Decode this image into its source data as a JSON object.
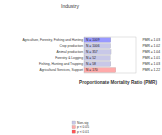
{
  "chart_data": {
    "type": "bar",
    "orientation": "horizontal",
    "title": "Industry",
    "x_label": "Proportionate Mortality Ratio (PMR)",
    "categories": [
      "Agriculture, Forestry, Fishing and Hunting",
      "Crop production",
      "Animal production",
      "Forestry & Logging",
      "Fishing, Hunting and Trapping",
      "Agricultural Services, Support"
    ],
    "values": [
      1.03,
      1.02,
      1.04,
      1.01,
      1.03,
      1.22
    ],
    "value_labels": [
      "PMR = 1.03",
      "PMR = 1.02",
      "PMR = 1.04",
      "PMR = 1.01",
      "PMR = 1.03",
      "PMR = 1.22"
    ],
    "counts": [
      1009,
      1006,
      357,
      52,
      58,
      170
    ],
    "count_labels": [
      "N = 1009",
      "N = 1006",
      "N = 357",
      "N = 52",
      "N = 58",
      "N = 170"
    ],
    "colors": [
      "#9999ff",
      "#c8c8e8",
      "#c8c8e8",
      "#c8c8e8",
      "#c8c8e8",
      "#ffaaaa"
    ],
    "xlim": [
      0,
      2
    ],
    "tick_labels": false,
    "data_labels": true,
    "legend_entries": [
      {
        "name": "Non-sig",
        "color": "#c8c8e8"
      },
      {
        "name": "p < 0.05",
        "color": "#ffaaaa"
      },
      {
        "name": "p < 0.01",
        "color": "#ff5555"
      }
    ]
  }
}
